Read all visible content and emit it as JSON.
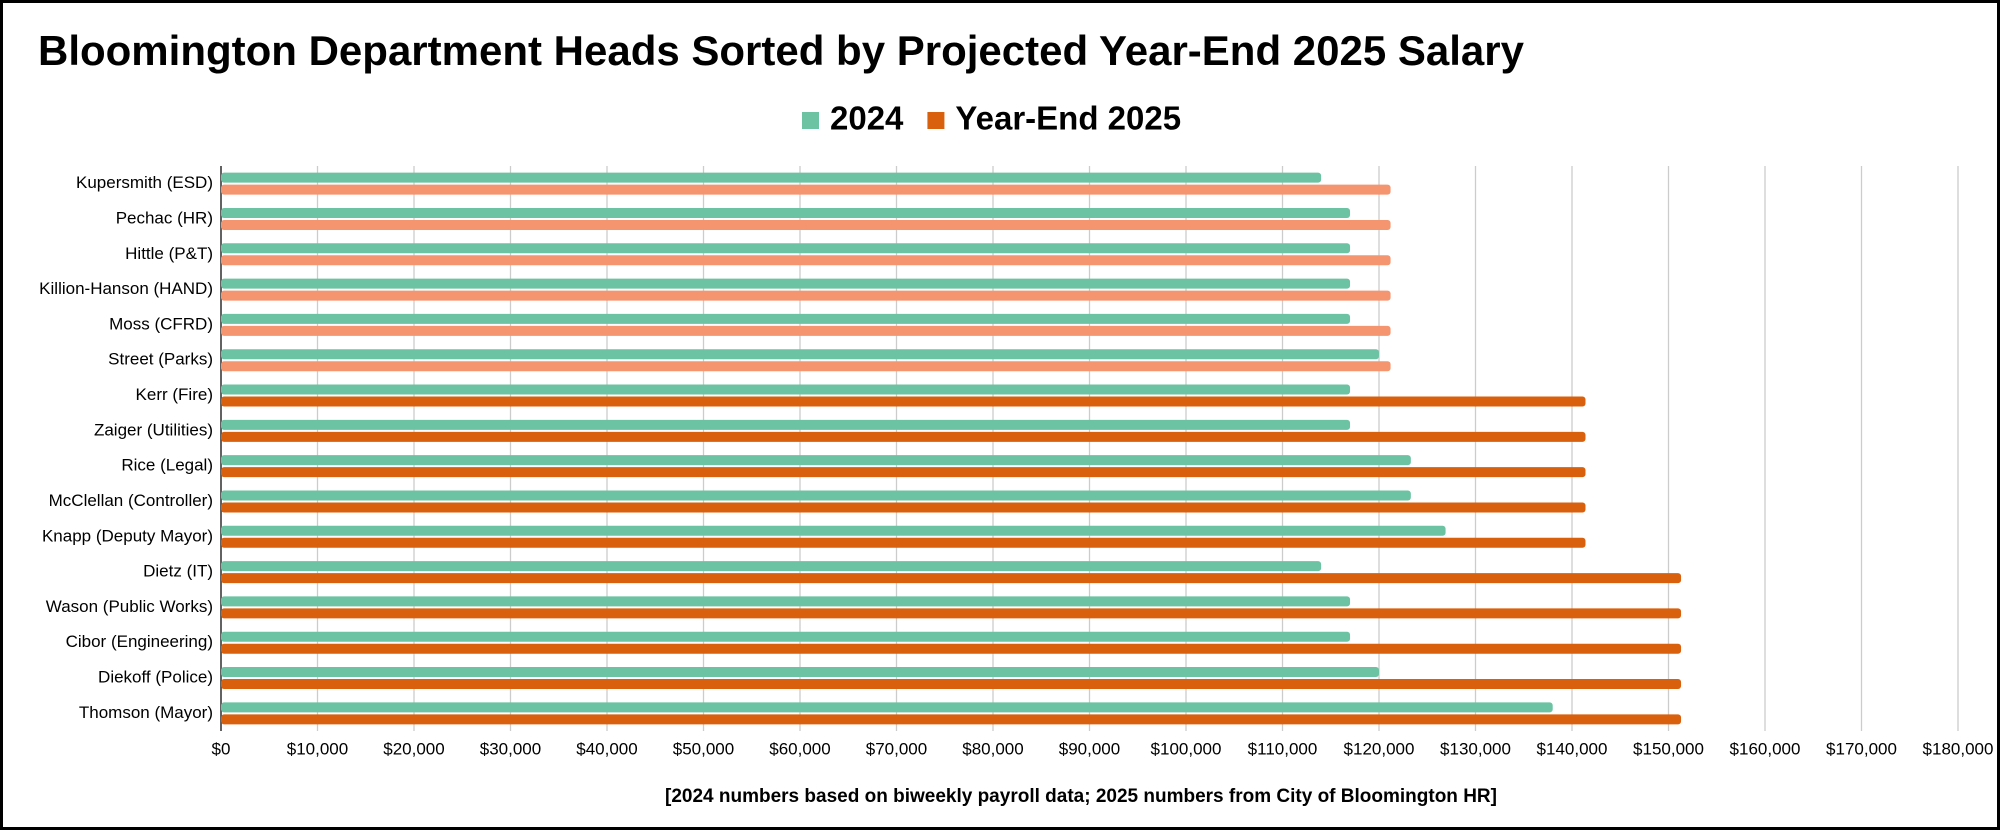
{
  "chart_data": {
    "type": "hbar",
    "title": "Bloomington Department Heads Sorted by Projected Year-End 2025 Salary",
    "x_label": "[2024 numbers based on biweekly payroll data; 2025 numbers from City of Bloomington HR]",
    "categories": [
      "Kupersmith (ESD)",
      "Pechac (HR)",
      "Hittle (P&T)",
      "Killion-Hanson (HAND)",
      "Moss (CFRD)",
      "Street (Parks)",
      "Kerr (Fire)",
      "Zaiger (Utilities)",
      "Rice (Legal)",
      "McClellan (Controller)",
      "Knapp (Deputy Mayor)",
      "Dietz (IT)",
      "Wason (Public Works)",
      "Cibor (Engineering)",
      "Diekoff (Police)",
      "Thomson (Mayor)"
    ],
    "series": [
      {
        "name": "2024",
        "color": "#6cc3a3",
        "values": [
          114000,
          117000,
          117000,
          117000,
          117000,
          120000,
          117000,
          117000,
          123300,
          123300,
          126900,
          114000,
          117000,
          117000,
          120000,
          138000
        ]
      },
      {
        "name": "Year-End 2025",
        "color": "#d9600d",
        "colors": [
          "#f4956f",
          "#f4956f",
          "#f4956f",
          "#f4956f",
          "#f4956f",
          "#f4956f",
          "#d9600d",
          "#d9600d",
          "#d9600d",
          "#d9600d",
          "#d9600d",
          "#d9600d",
          "#d9600d",
          "#d9600d",
          "#d9600d",
          "#d9600d"
        ],
        "values": [
          121200,
          121200,
          121200,
          121200,
          121200,
          121200,
          141400,
          141400,
          141400,
          141400,
          141400,
          151300,
          151300,
          151300,
          151300,
          151300
        ]
      }
    ],
    "xlim": [
      0,
      180000
    ],
    "xticks": [
      {
        "value": 0,
        "label": "$0"
      },
      {
        "value": 10000,
        "label": "$10,000"
      },
      {
        "value": 20000,
        "label": "$20,000"
      },
      {
        "value": 30000,
        "label": "$30,000"
      },
      {
        "value": 40000,
        "label": "$40,000"
      },
      {
        "value": 50000,
        "label": "$50,000"
      },
      {
        "value": 60000,
        "label": "$60,000"
      },
      {
        "value": 70000,
        "label": "$70,000"
      },
      {
        "value": 80000,
        "label": "$80,000"
      },
      {
        "value": 90000,
        "label": "$90,000"
      },
      {
        "value": 100000,
        "label": "$100,000"
      },
      {
        "value": 110000,
        "label": "$110,000"
      },
      {
        "value": 120000,
        "label": "$120,000"
      },
      {
        "value": 130000,
        "label": "$130,000"
      },
      {
        "value": 140000,
        "label": "$140,000"
      },
      {
        "value": 150000,
        "label": "$150,000"
      },
      {
        "value": 160000,
        "label": "$160,000"
      },
      {
        "value": 170000,
        "label": "$170,000"
      },
      {
        "value": 180000,
        "label": "$180,000"
      }
    ],
    "grid": true,
    "legend": "top"
  }
}
